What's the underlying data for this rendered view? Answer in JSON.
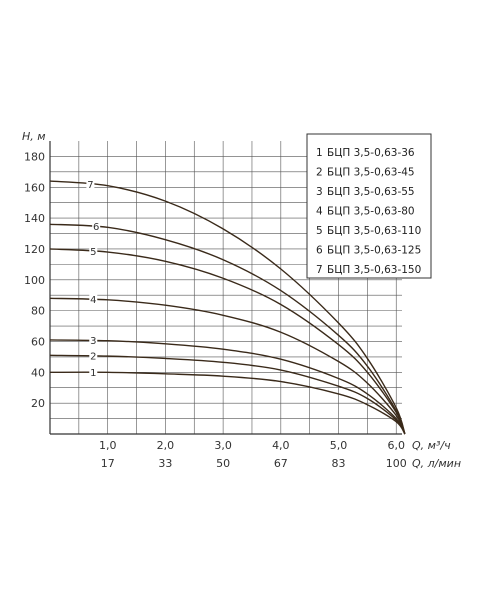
{
  "chart_data": {
    "type": "line",
    "title": "",
    "ylabel": "H, м",
    "xlabel": "Q, м³/ч",
    "xlabel2": "Q, л/мин",
    "xlim": [
      0,
      6.1
    ],
    "ylim": [
      0,
      190
    ],
    "x_ticks": [
      1.0,
      2.0,
      3.0,
      4.0,
      5.0,
      6.0
    ],
    "x_tick_labels": [
      "1,0",
      "2,0",
      "3,0",
      "4,0",
      "5,0",
      "6,0"
    ],
    "x2_tick_labels": [
      "17",
      "33",
      "50",
      "67",
      "83",
      "100"
    ],
    "y_ticks": [
      20,
      40,
      60,
      80,
      100,
      120,
      140,
      160,
      180
    ],
    "y_tick_labels": [
      "20",
      "40",
      "60",
      "80",
      "100",
      "120",
      "140",
      "160",
      "180"
    ],
    "grid": true,
    "legend_position": "top-right",
    "series": [
      {
        "name": "БЦП 3,5-0,63-36",
        "label": "1",
        "label_x": 0.75,
        "x": [
          0,
          1,
          2,
          3,
          4,
          5,
          5.5,
          6.0,
          6.15
        ],
        "y": [
          40,
          40,
          39,
          37.5,
          34,
          26,
          19,
          8,
          0
        ]
      },
      {
        "name": "БЦП 3,5-0,63-45",
        "label": "2",
        "label_x": 0.75,
        "x": [
          0,
          1,
          2,
          3,
          4,
          5,
          5.5,
          6.0,
          6.15
        ],
        "y": [
          51,
          50.5,
          49,
          46.5,
          41.5,
          31,
          23,
          9,
          0
        ]
      },
      {
        "name": "БЦП 3,5-0,63-55",
        "label": "3",
        "label_x": 0.75,
        "x": [
          0,
          1,
          2,
          3,
          4,
          5,
          5.5,
          6.0,
          6.15
        ],
        "y": [
          61,
          60.5,
          58.5,
          55,
          48.5,
          36,
          26,
          10,
          0
        ]
      },
      {
        "name": "БЦП 3,5-0,63-80",
        "label": "4",
        "label_x": 0.75,
        "x": [
          0,
          1,
          2,
          3,
          4,
          5,
          5.5,
          6.0,
          6.15
        ],
        "y": [
          88,
          87,
          83.5,
          77,
          66,
          47,
          33,
          12,
          0
        ]
      },
      {
        "name": "БЦП 3,5-0,63-110",
        "label": "5",
        "label_x": 0.75,
        "x": [
          0,
          1,
          2,
          3,
          4,
          5,
          5.5,
          6.0,
          6.15
        ],
        "y": [
          120,
          118,
          112,
          101,
          84,
          58,
          40,
          14,
          0
        ]
      },
      {
        "name": "БЦП 3,5-0,63-125",
        "label": "6",
        "label_x": 0.8,
        "x": [
          0,
          1,
          2,
          3,
          4,
          5,
          5.5,
          6.0,
          6.15
        ],
        "y": [
          136,
          134,
          126,
          113,
          93,
          64,
          44,
          15,
          0
        ]
      },
      {
        "name": "БЦП 3,5-0,63-150",
        "label": "7",
        "label_x": 0.7,
        "x": [
          0,
          1,
          2,
          3,
          4,
          5,
          5.5,
          6.0,
          6.15
        ],
        "y": [
          164,
          161,
          151,
          133,
          107,
          72,
          49,
          17,
          0
        ]
      }
    ],
    "colors": {
      "curve": "#3a2a1a",
      "grid": "#555555",
      "axis": "#333333",
      "text": "#333333"
    }
  }
}
